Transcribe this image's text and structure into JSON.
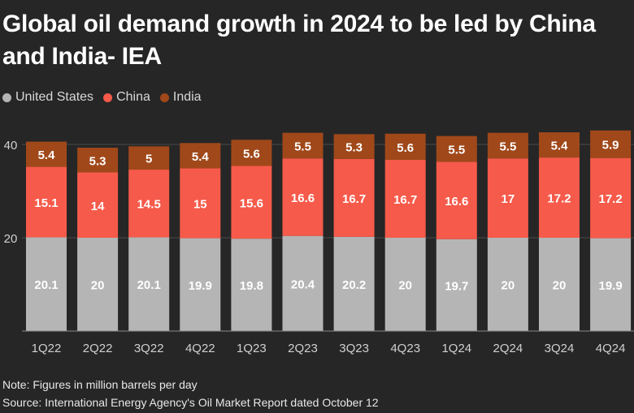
{
  "title": "Global oil demand growth in 2024 to be led by China and India- IEA",
  "colors": {
    "United States": "#b5b5b5",
    "China": "#f65a4a",
    "India": "#a0481a",
    "background": "#262626"
  },
  "chart_data": {
    "type": "bar",
    "stacked": true,
    "categories": [
      "1Q22",
      "2Q22",
      "3Q22",
      "4Q22",
      "1Q23",
      "2Q23",
      "3Q23",
      "4Q23",
      "1Q24",
      "2Q24",
      "3Q24",
      "4Q24"
    ],
    "series": [
      {
        "name": "United States",
        "values": [
          20.1,
          20,
          20.1,
          19.9,
          19.8,
          20.4,
          20.2,
          20,
          19.7,
          20,
          20,
          19.9
        ]
      },
      {
        "name": "China",
        "values": [
          15.1,
          14,
          14.5,
          15,
          15.6,
          16.6,
          16.7,
          16.7,
          16.6,
          17,
          17.2,
          17.2
        ]
      },
      {
        "name": "India",
        "values": [
          5.4,
          5.3,
          5,
          5.4,
          5.6,
          5.5,
          5.3,
          5.6,
          5.5,
          5.5,
          5.4,
          5.9
        ]
      }
    ],
    "yticks": [
      20,
      40
    ],
    "ylim": [
      0,
      43
    ],
    "legend": "top-left",
    "grid": true
  },
  "notes": {
    "note": "Note: Figures in million barrels per day",
    "source": "Source: International Energy Agency's Oil Market Report dated October 12"
  }
}
